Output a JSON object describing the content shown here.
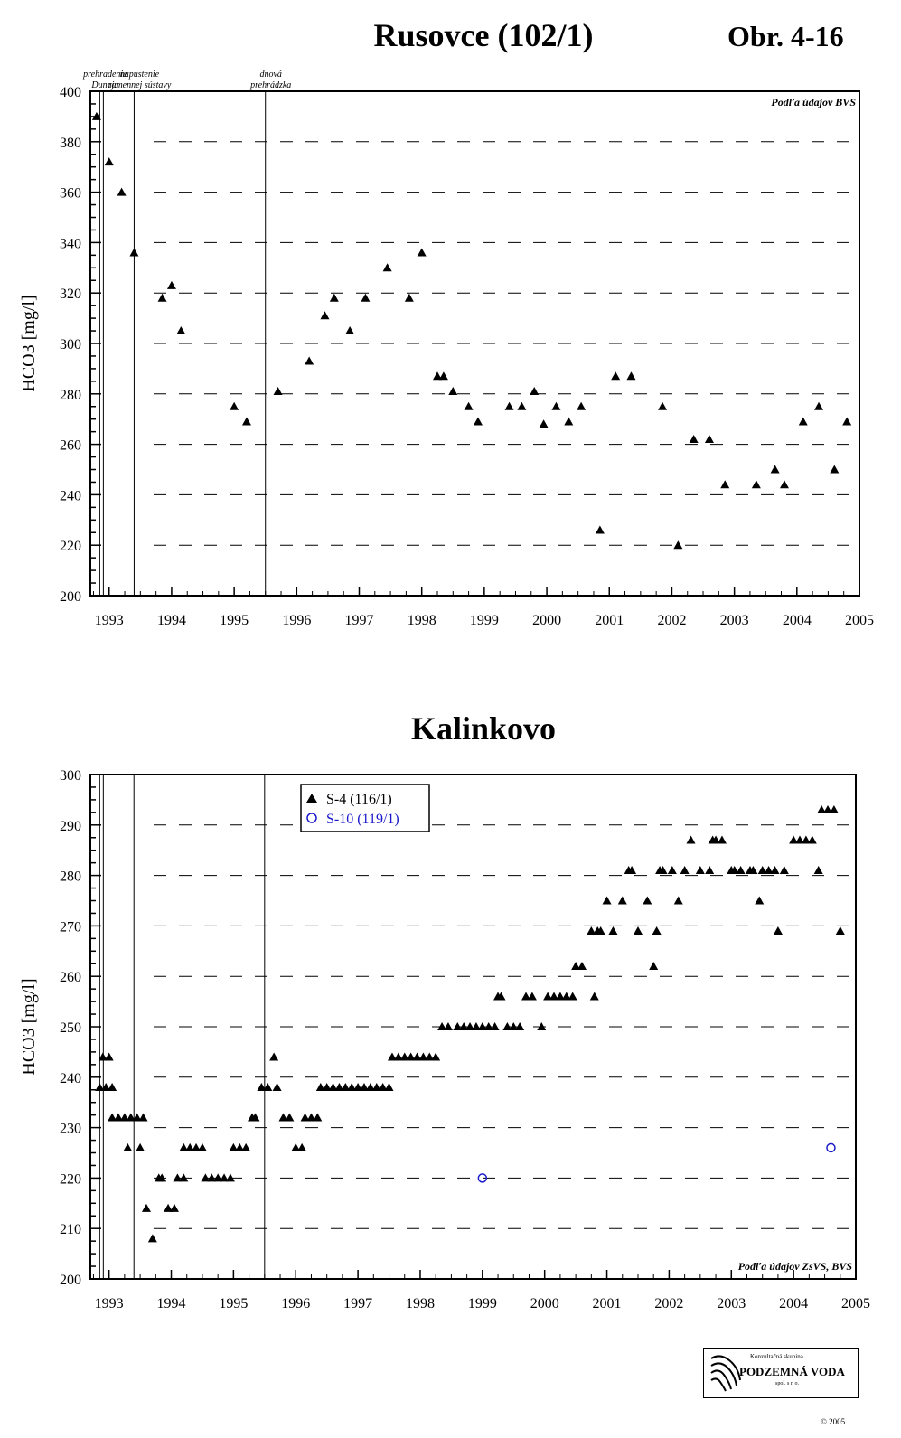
{
  "header": {
    "title_top": "Rusovce (102/1)",
    "figure_label": "Obr. 4-16",
    "title_bottom": "Kalinkovo"
  },
  "chart_data": [
    {
      "type": "scatter",
      "title": "Rusovce (102/1)",
      "ylabel": "HCO3 [mg/l]",
      "xlabel": "",
      "xlim": [
        1992.7,
        2005.0
      ],
      "ylim": [
        200,
        400
      ],
      "ytick_step": 20,
      "xticks": [
        1993,
        1994,
        1995,
        1996,
        1997,
        1998,
        1999,
        2000,
        2001,
        2002,
        2003,
        2004,
        2005
      ],
      "grid": "horizontal dashed",
      "source_note": "Podľa údajov BVS",
      "events": [
        {
          "x": 1992.85,
          "label_lines": [
            "prehradenie",
            "Dunaja"
          ],
          "double": true
        },
        {
          "x": 1993.4,
          "label_lines": [
            "napustenie",
            "ramennej sústavy"
          ],
          "double": false
        },
        {
          "x": 1995.5,
          "label_lines": [
            "dnová",
            "prehrádzka"
          ],
          "double": false
        }
      ],
      "series": [
        {
          "marker": "triangle",
          "color": "#000000",
          "points": [
            [
              1992.8,
              390
            ],
            [
              1993.0,
              372
            ],
            [
              1993.2,
              360
            ],
            [
              1993.4,
              336
            ],
            [
              1993.85,
              318
            ],
            [
              1994.0,
              323
            ],
            [
              1994.15,
              305
            ],
            [
              1995.0,
              275
            ],
            [
              1995.2,
              269
            ],
            [
              1995.7,
              281
            ],
            [
              1996.2,
              293
            ],
            [
              1996.45,
              311
            ],
            [
              1996.6,
              318
            ],
            [
              1996.85,
              305
            ],
            [
              1997.1,
              318
            ],
            [
              1997.45,
              330
            ],
            [
              1997.8,
              318
            ],
            [
              1998.0,
              336
            ],
            [
              1998.25,
              287
            ],
            [
              1998.35,
              287
            ],
            [
              1998.5,
              281
            ],
            [
              1998.75,
              275
            ],
            [
              1998.9,
              269
            ],
            [
              1999.4,
              275
            ],
            [
              1999.6,
              275
            ],
            [
              1999.8,
              281
            ],
            [
              1999.95,
              268
            ],
            [
              2000.15,
              275
            ],
            [
              2000.35,
              269
            ],
            [
              2000.55,
              275
            ],
            [
              2000.85,
              226
            ],
            [
              2001.1,
              287
            ],
            [
              2001.35,
              287
            ],
            [
              2001.85,
              275
            ],
            [
              2002.1,
              220
            ],
            [
              2002.35,
              262
            ],
            [
              2002.6,
              262
            ],
            [
              2002.85,
              244
            ],
            [
              2003.35,
              244
            ],
            [
              2003.65,
              250
            ],
            [
              2003.8,
              244
            ],
            [
              2004.1,
              269
            ],
            [
              2004.35,
              275
            ],
            [
              2004.6,
              250
            ],
            [
              2004.8,
              269
            ]
          ]
        }
      ]
    },
    {
      "type": "scatter",
      "title": "Kalinkovo",
      "ylabel": "HCO3 [mg/l]",
      "xlabel": "",
      "xlim": [
        1992.7,
        2005.0
      ],
      "ylim": [
        200,
        300
      ],
      "ytick_step": 10,
      "xticks": [
        1993,
        1994,
        1995,
        1996,
        1997,
        1998,
        1999,
        2000,
        2001,
        2002,
        2003,
        2004,
        2005
      ],
      "grid": "horizontal dashed",
      "legend_position": "top-left",
      "source_note": "Podľa údajov ZsVS, BVS",
      "events": [
        {
          "x": 1992.85,
          "double": true
        },
        {
          "x": 1993.4,
          "double": false
        },
        {
          "x": 1995.5,
          "double": false
        }
      ],
      "series": [
        {
          "name": "S-4 (116/1)",
          "marker": "triangle",
          "color": "#000000",
          "points": [
            [
              1992.85,
              238
            ],
            [
              1992.9,
              244
            ],
            [
              1993.0,
              244
            ],
            [
              1992.95,
              238
            ],
            [
              1993.05,
              238
            ],
            [
              1993.05,
              232
            ],
            [
              1993.15,
              232
            ],
            [
              1993.25,
              232
            ],
            [
              1993.35,
              232
            ],
            [
              1993.45,
              232
            ],
            [
              1993.55,
              232
            ],
            [
              1993.3,
              226
            ],
            [
              1993.5,
              226
            ],
            [
              1993.6,
              214
            ],
            [
              1993.7,
              208
            ],
            [
              1993.8,
              220
            ],
            [
              1993.85,
              220
            ],
            [
              1993.95,
              214
            ],
            [
              1994.05,
              214
            ],
            [
              1994.1,
              220
            ],
            [
              1994.2,
              220
            ],
            [
              1994.2,
              226
            ],
            [
              1994.3,
              226
            ],
            [
              1994.4,
              226
            ],
            [
              1994.5,
              226
            ],
            [
              1994.55,
              220
            ],
            [
              1994.65,
              220
            ],
            [
              1994.75,
              220
            ],
            [
              1994.85,
              220
            ],
            [
              1994.95,
              220
            ],
            [
              1995.0,
              226
            ],
            [
              1995.1,
              226
            ],
            [
              1995.2,
              226
            ],
            [
              1995.3,
              232
            ],
            [
              1995.35,
              232
            ],
            [
              1995.45,
              238
            ],
            [
              1995.55,
              238
            ],
            [
              1995.65,
              244
            ],
            [
              1995.7,
              238
            ],
            [
              1995.8,
              232
            ],
            [
              1995.9,
              232
            ],
            [
              1996.0,
              226
            ],
            [
              1996.1,
              226
            ],
            [
              1996.15,
              232
            ],
            [
              1996.25,
              232
            ],
            [
              1996.35,
              232
            ],
            [
              1996.4,
              238
            ],
            [
              1996.5,
              238
            ],
            [
              1996.6,
              238
            ],
            [
              1996.7,
              238
            ],
            [
              1996.8,
              238
            ],
            [
              1996.9,
              238
            ],
            [
              1997.0,
              238
            ],
            [
              1997.1,
              238
            ],
            [
              1997.2,
              238
            ],
            [
              1997.3,
              238
            ],
            [
              1997.4,
              238
            ],
            [
              1997.5,
              238
            ],
            [
              1997.55,
              244
            ],
            [
              1997.65,
              244
            ],
            [
              1997.75,
              244
            ],
            [
              1997.85,
              244
            ],
            [
              1997.95,
              244
            ],
            [
              1998.05,
              244
            ],
            [
              1998.15,
              244
            ],
            [
              1998.25,
              244
            ],
            [
              1998.35,
              250
            ],
            [
              1998.45,
              250
            ],
            [
              1998.6,
              250
            ],
            [
              1998.7,
              250
            ],
            [
              1998.8,
              250
            ],
            [
              1998.9,
              250
            ],
            [
              1999.0,
              250
            ],
            [
              1999.1,
              250
            ],
            [
              1999.2,
              250
            ],
            [
              1999.25,
              256
            ],
            [
              1999.3,
              256
            ],
            [
              1999.4,
              250
            ],
            [
              1999.5,
              250
            ],
            [
              1999.6,
              250
            ],
            [
              1999.7,
              256
            ],
            [
              1999.8,
              256
            ],
            [
              1999.95,
              250
            ],
            [
              2000.05,
              256
            ],
            [
              2000.15,
              256
            ],
            [
              2000.25,
              256
            ],
            [
              2000.35,
              256
            ],
            [
              2000.45,
              256
            ],
            [
              2000.5,
              262
            ],
            [
              2000.6,
              262
            ],
            [
              2000.75,
              269
            ],
            [
              2000.8,
              256
            ],
            [
              2000.85,
              269
            ],
            [
              2000.9,
              269
            ],
            [
              2001.0,
              275
            ],
            [
              2001.1,
              269
            ],
            [
              2001.25,
              275
            ],
            [
              2001.35,
              281
            ],
            [
              2001.4,
              281
            ],
            [
              2001.5,
              269
            ],
            [
              2001.65,
              275
            ],
            [
              2001.75,
              262
            ],
            [
              2001.8,
              269
            ],
            [
              2001.85,
              281
            ],
            [
              2001.9,
              281
            ],
            [
              2002.05,
              281
            ],
            [
              2002.15,
              275
            ],
            [
              2002.25,
              281
            ],
            [
              2002.35,
              287
            ],
            [
              2002.5,
              281
            ],
            [
              2002.65,
              281
            ],
            [
              2002.7,
              287
            ],
            [
              2002.75,
              287
            ],
            [
              2002.85,
              287
            ],
            [
              2003.0,
              281
            ],
            [
              2003.05,
              281
            ],
            [
              2003.15,
              281
            ],
            [
              2003.3,
              281
            ],
            [
              2003.35,
              281
            ],
            [
              2003.45,
              275
            ],
            [
              2003.5,
              281
            ],
            [
              2003.6,
              281
            ],
            [
              2003.7,
              281
            ],
            [
              2003.75,
              269
            ],
            [
              2003.85,
              281
            ],
            [
              2004.0,
              287
            ],
            [
              2004.1,
              287
            ],
            [
              2004.2,
              287
            ],
            [
              2004.3,
              287
            ],
            [
              2004.4,
              281
            ],
            [
              2004.45,
              293
            ],
            [
              2004.55,
              293
            ],
            [
              2004.65,
              293
            ],
            [
              2004.75,
              269
            ]
          ]
        },
        {
          "name": "S-10 (119/1)",
          "marker": "circle",
          "color": "#1a1acc",
          "points": [
            [
              1999.0,
              220
            ],
            [
              2004.6,
              226
            ]
          ]
        }
      ]
    }
  ],
  "footer": {
    "logo_top": "Konzultačná skupina",
    "logo_main": "PODZEMNÁ VODA",
    "logo_sub": "spol. s r. o.",
    "copyright": "© 2005"
  }
}
